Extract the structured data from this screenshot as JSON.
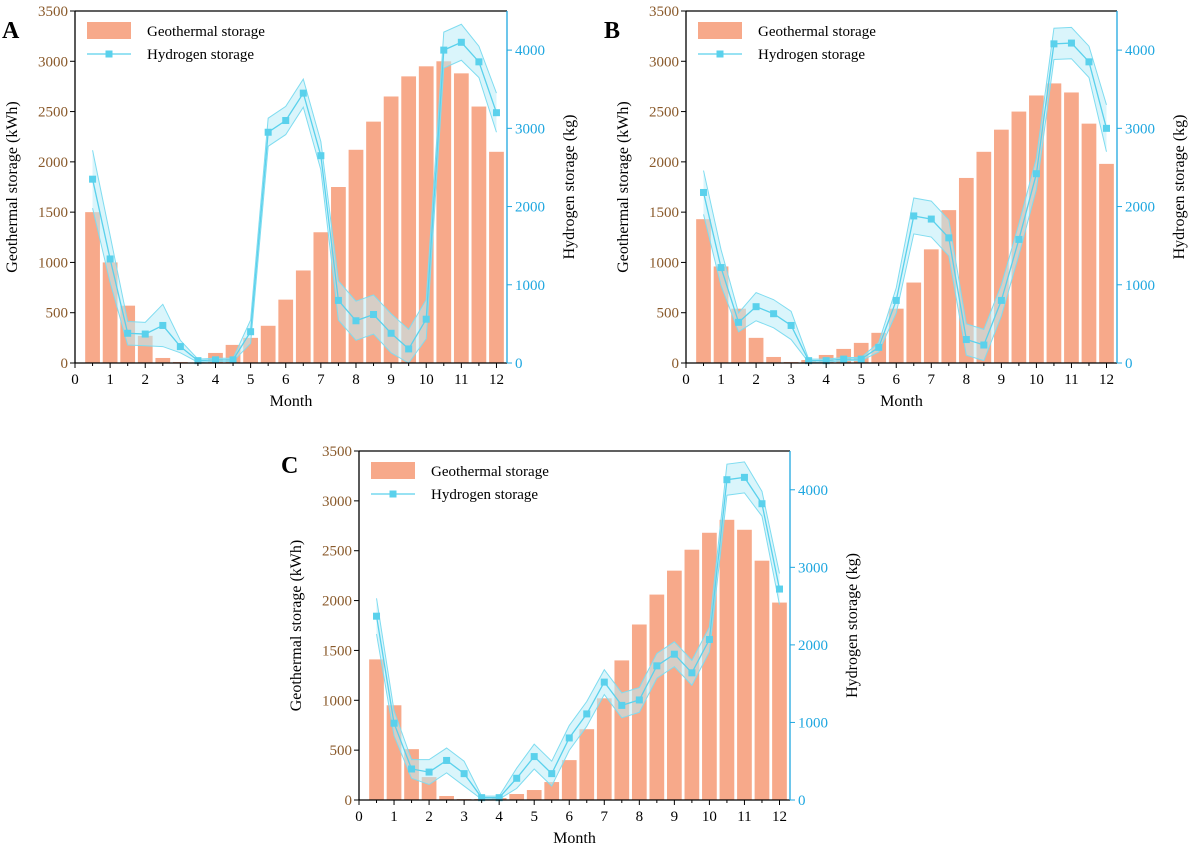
{
  "colors": {
    "bar": "#f7a98a",
    "line": "#5ad1ec",
    "band_fill": "#bcecf7",
    "band_stroke": "#7fdcf0",
    "left_axis": "#8a5a2b",
    "right_axis": "#1fa7e0",
    "black": "#000000"
  },
  "chart_data": [
    {
      "panel_label": "A",
      "type": "bar+line",
      "xlabel": "Month",
      "ylabel_left": "Geothermal storage (kWh)",
      "ylabel_right": "Hydrogen storage (kg)",
      "xlim": [
        0,
        12.3
      ],
      "ylim_left": [
        0,
        3500
      ],
      "ylim_right": [
        0,
        4500
      ],
      "x_ticks": [
        "0",
        "1",
        "2",
        "3",
        "4",
        "5",
        "6",
        "7",
        "8",
        "9",
        "10",
        "11",
        "12"
      ],
      "y_ticks_left": [
        "0",
        "500",
        "1000",
        "1500",
        "2000",
        "2500",
        "3000",
        "3500"
      ],
      "y_ticks_right": [
        "0",
        "1000",
        "2000",
        "3000",
        "4000"
      ],
      "legend": [
        "Geothermal storage",
        "Hydrogen storage"
      ],
      "x": [
        0.5,
        1,
        1.5,
        2,
        2.5,
        3,
        3.5,
        4,
        4.5,
        5,
        5.5,
        6,
        6.5,
        7,
        7.5,
        8,
        8.5,
        9,
        9.5,
        10,
        10.5,
        11,
        11.5,
        12
      ],
      "geothermal": [
        1500,
        1000,
        570,
        270,
        50,
        10,
        0,
        100,
        180,
        250,
        370,
        630,
        920,
        1300,
        1750,
        2120,
        2400,
        2650,
        2850,
        2950,
        3000,
        2880,
        2550,
        2100
      ],
      "hydrogen": [
        2350,
        1330,
        380,
        370,
        480,
        210,
        30,
        40,
        40,
        400,
        2950,
        3100,
        3450,
        2650,
        800,
        540,
        620,
        380,
        180,
        560,
        4000,
        4100,
        3850,
        3200
      ],
      "hydrogen_band": [
        370,
        300,
        150,
        150,
        270,
        80,
        20,
        20,
        20,
        150,
        180,
        180,
        180,
        180,
        250,
        250,
        250,
        250,
        250,
        250,
        230,
        230,
        200,
        250
      ]
    },
    {
      "panel_label": "B",
      "type": "bar+line",
      "xlabel": "Month",
      "ylabel_left": "Geothermal storage (kWh)",
      "ylabel_right": "Hydrogen storage (kg)",
      "xlim": [
        0,
        12.3
      ],
      "ylim_left": [
        0,
        3500
      ],
      "ylim_right": [
        0,
        4500
      ],
      "x_ticks": [
        "0",
        "1",
        "2",
        "3",
        "4",
        "5",
        "6",
        "7",
        "8",
        "9",
        "10",
        "11",
        "12"
      ],
      "y_ticks_left": [
        "0",
        "500",
        "1000",
        "1500",
        "2000",
        "2500",
        "3000",
        "3500"
      ],
      "y_ticks_right": [
        "0",
        "1000",
        "2000",
        "3000",
        "4000"
      ],
      "legend": [
        "Geothermal storage",
        "Hydrogen storage"
      ],
      "x": [
        0.5,
        1,
        1.5,
        2,
        2.5,
        3,
        3.5,
        4,
        4.5,
        5,
        5.5,
        6,
        6.5,
        7,
        7.5,
        8,
        8.5,
        9,
        9.5,
        10,
        10.5,
        11,
        11.5,
        12
      ],
      "geothermal": [
        1430,
        960,
        540,
        250,
        60,
        10,
        30,
        80,
        140,
        200,
        300,
        540,
        800,
        1130,
        1520,
        1840,
        2100,
        2320,
        2500,
        2660,
        2780,
        2690,
        2380,
        1980
      ],
      "hydrogen": [
        2180,
        1220,
        520,
        720,
        630,
        480,
        30,
        30,
        50,
        50,
        200,
        800,
        1880,
        1840,
        1600,
        300,
        230,
        800,
        1580,
        2420,
        4080,
        4090,
        3850,
        3000
      ],
      "hydrogen_band": [
        280,
        230,
        120,
        180,
        180,
        180,
        20,
        20,
        20,
        20,
        60,
        160,
        230,
        230,
        230,
        200,
        200,
        200,
        200,
        200,
        200,
        200,
        200,
        300
      ]
    },
    {
      "panel_label": "C",
      "type": "bar+line",
      "xlabel": "Month",
      "ylabel_left": "Geothermal storage (kWh)",
      "ylabel_right": "Hydrogen storage (kg)",
      "xlim": [
        0,
        12.3
      ],
      "ylim_left": [
        0,
        3500
      ],
      "ylim_right": [
        0,
        4500
      ],
      "x_ticks": [
        "0",
        "1",
        "2",
        "3",
        "4",
        "5",
        "6",
        "7",
        "8",
        "9",
        "10",
        "11",
        "12"
      ],
      "y_ticks_left": [
        "0",
        "500",
        "1000",
        "1500",
        "2000",
        "2500",
        "3000",
        "3500"
      ],
      "y_ticks_right": [
        "0",
        "1000",
        "2000",
        "3000",
        "4000"
      ],
      "legend": [
        "Geothermal storage",
        "Hydrogen storage"
      ],
      "x": [
        0.5,
        1,
        1.5,
        2,
        2.5,
        3,
        3.5,
        4,
        4.5,
        5,
        5.5,
        6,
        6.5,
        7,
        7.5,
        8,
        8.5,
        9,
        9.5,
        10,
        10.5,
        11,
        11.5,
        12
      ],
      "geothermal": [
        1410,
        950,
        510,
        230,
        40,
        10,
        10,
        20,
        60,
        100,
        180,
        400,
        710,
        1020,
        1400,
        1760,
        2060,
        2300,
        2510,
        2680,
        2810,
        2710,
        2400,
        1980
      ],
      "hydrogen": [
        2370,
        990,
        400,
        360,
        510,
        340,
        30,
        30,
        280,
        560,
        340,
        800,
        1110,
        1520,
        1220,
        1290,
        1730,
        1880,
        1640,
        2070,
        4130,
        4160,
        3820,
        2720
      ],
      "hydrogen_band": [
        230,
        160,
        120,
        160,
        160,
        160,
        20,
        20,
        130,
        160,
        160,
        160,
        160,
        160,
        160,
        160,
        160,
        160,
        160,
        160,
        200,
        200,
        160,
        200
      ]
    }
  ]
}
